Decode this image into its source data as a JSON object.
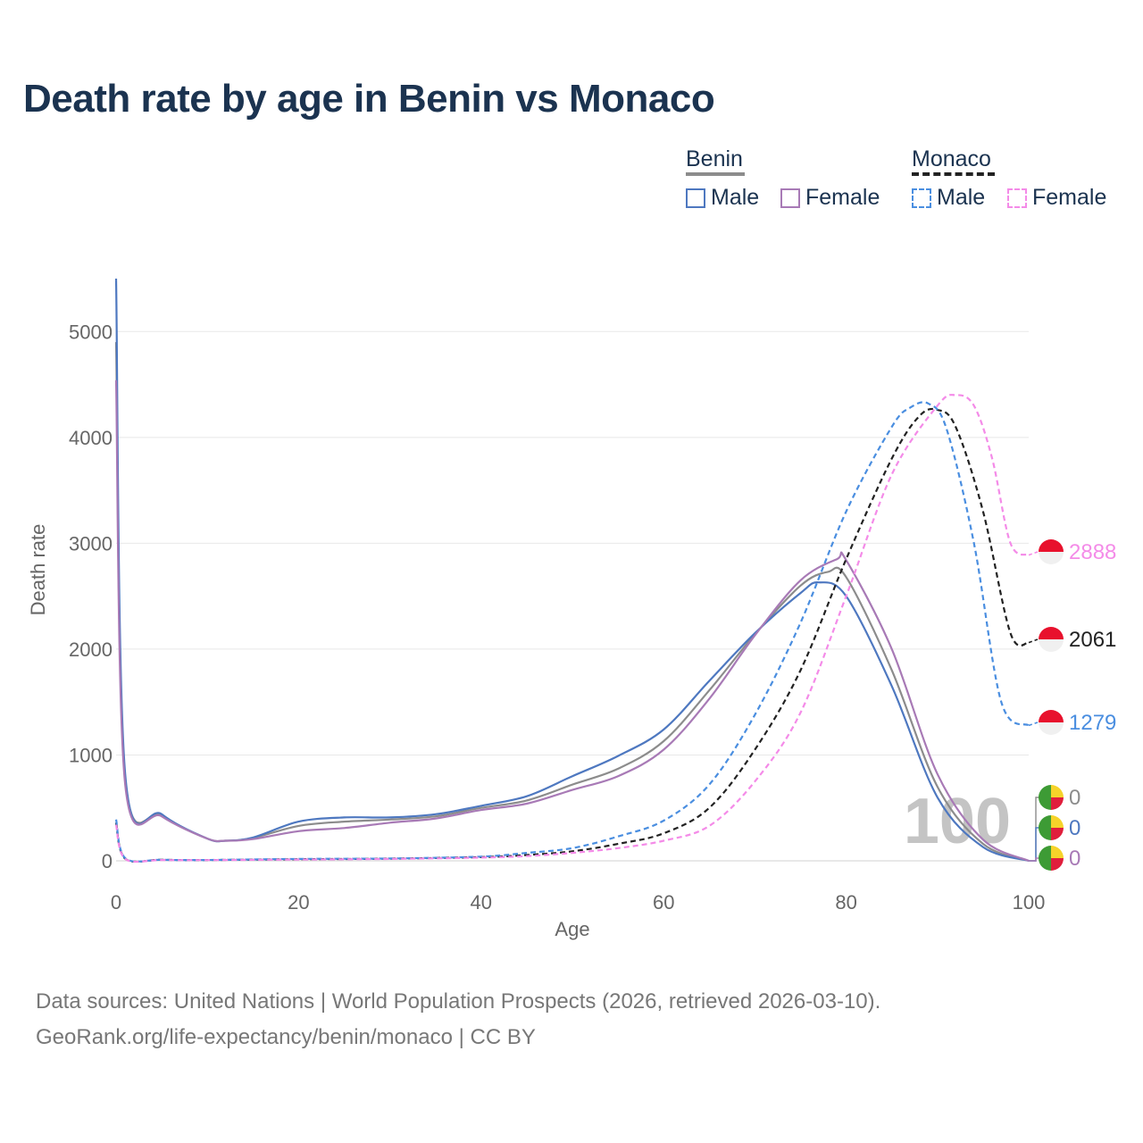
{
  "chart_data": {
    "type": "line",
    "title": "Death rate by age in Benin vs Monaco",
    "xlabel": "Age",
    "ylabel": "Death rate",
    "xlim": [
      0,
      100
    ],
    "ylim": [
      0,
      5500
    ],
    "x_ticks": [
      0,
      20,
      40,
      60,
      80,
      100
    ],
    "y_ticks": [
      0,
      1000,
      2000,
      3000,
      4000,
      5000
    ],
    "x_tick_labels": [
      "0",
      "20",
      "40",
      "60",
      "80",
      "100"
    ],
    "y_tick_labels": [
      "0",
      "1000",
      "2000",
      "3000",
      "4000",
      "5000"
    ],
    "grid": true,
    "legend_position": "top-right",
    "age_marker": "100",
    "series": [
      {
        "name": "Benin Total",
        "country": "Benin",
        "sex": "Total",
        "color": "#8c8c8c",
        "dashed": false,
        "x": [
          0,
          1,
          5,
          10,
          12,
          15,
          20,
          25,
          30,
          35,
          40,
          45,
          50,
          55,
          60,
          65,
          70,
          75,
          78,
          80,
          85,
          90,
          95,
          100
        ],
        "y": [
          4900,
          780,
          430,
          210,
          190,
          215,
          330,
          370,
          390,
          420,
          500,
          570,
          720,
          870,
          1130,
          1610,
          2140,
          2600,
          2730,
          2680,
          1800,
          700,
          160,
          0
        ]
      },
      {
        "name": "Benin Male",
        "country": "Benin",
        "sex": "Male",
        "color": "#4e78c0",
        "dashed": false,
        "x": [
          0,
          1,
          5,
          10,
          12,
          15,
          20,
          25,
          30,
          35,
          40,
          45,
          50,
          55,
          60,
          65,
          70,
          75,
          77,
          80,
          85,
          90,
          95,
          100
        ],
        "y": [
          5500,
          820,
          440,
          210,
          190,
          220,
          370,
          410,
          410,
          440,
          520,
          610,
          800,
          990,
          1240,
          1700,
          2150,
          2530,
          2630,
          2500,
          1650,
          600,
          130,
          0
        ]
      },
      {
        "name": "Benin Female",
        "country": "Benin",
        "sex": "Female",
        "color": "#a87ab6",
        "dashed": false,
        "x": [
          0,
          1,
          5,
          10,
          12,
          15,
          20,
          25,
          30,
          35,
          40,
          45,
          50,
          55,
          60,
          65,
          70,
          75,
          79,
          80,
          85,
          90,
          95,
          100
        ],
        "y": [
          4540,
          720,
          420,
          210,
          190,
          205,
          280,
          310,
          360,
          400,
          480,
          540,
          670,
          800,
          1050,
          1530,
          2130,
          2650,
          2850,
          2840,
          2000,
          820,
          200,
          0
        ]
      },
      {
        "name": "Monaco Total",
        "country": "Monaco",
        "sex": "Total",
        "color": "#222222",
        "dashed": true,
        "x": [
          0,
          1,
          5,
          10,
          20,
          30,
          40,
          45,
          50,
          55,
          60,
          65,
          70,
          75,
          80,
          85,
          88,
          90,
          92,
          95,
          98,
          100
        ],
        "y": [
          360,
          20,
          10,
          8,
          15,
          20,
          35,
          55,
          90,
          160,
          260,
          500,
          1050,
          1800,
          2850,
          3800,
          4200,
          4260,
          4100,
          3300,
          2150,
          2061
        ]
      },
      {
        "name": "Monaco Male",
        "country": "Monaco",
        "sex": "Male",
        "color": "#4a8ee0",
        "dashed": true,
        "x": [
          0,
          1,
          5,
          10,
          20,
          30,
          40,
          45,
          50,
          55,
          60,
          65,
          70,
          75,
          80,
          85,
          87,
          89,
          91,
          94,
          97,
          100
        ],
        "y": [
          390,
          25,
          10,
          8,
          18,
          22,
          40,
          75,
          120,
          230,
          380,
          720,
          1380,
          2250,
          3300,
          4100,
          4280,
          4320,
          4080,
          3000,
          1500,
          1279
        ]
      },
      {
        "name": "Monaco Female",
        "country": "Monaco",
        "sex": "Female",
        "color": "#f48be8",
        "dashed": true,
        "x": [
          0,
          1,
          5,
          10,
          20,
          30,
          40,
          45,
          50,
          55,
          60,
          65,
          70,
          75,
          80,
          85,
          90,
          92,
          94,
          96,
          98,
          100
        ],
        "y": [
          340,
          18,
          8,
          7,
          12,
          18,
          30,
          45,
          75,
          120,
          190,
          330,
          750,
          1400,
          2500,
          3650,
          4300,
          4400,
          4300,
          3800,
          3000,
          2888
        ]
      }
    ],
    "end_labels": [
      {
        "label": "2888",
        "value": 2888,
        "color": "#f48be8",
        "flag": "monaco"
      },
      {
        "label": "2061",
        "value": 2061,
        "color": "#222222",
        "flag": "monaco"
      },
      {
        "label": "1279",
        "value": 1279,
        "color": "#4a8ee0",
        "flag": "monaco"
      },
      {
        "label": "0",
        "value": 0,
        "color": "#8c8c8c",
        "flag": "benin"
      },
      {
        "label": "0",
        "value": 0,
        "color": "#4e78c0",
        "flag": "benin"
      },
      {
        "label": "0",
        "value": 0,
        "color": "#a87ab6",
        "flag": "benin"
      }
    ]
  },
  "legend": {
    "groups": [
      {
        "title": "Benin",
        "underline_color": "#8c8c8c",
        "underline_dashed": false,
        "items": [
          {
            "label": "Male",
            "color": "#4e78c0",
            "dashed": false
          },
          {
            "label": "Female",
            "color": "#a87ab6",
            "dashed": false
          }
        ]
      },
      {
        "title": "Monaco",
        "underline_color": "#222222",
        "underline_dashed": true,
        "items": [
          {
            "label": "Male",
            "color": "#4a8ee0",
            "dashed": true
          },
          {
            "label": "Female",
            "color": "#f48be8",
            "dashed": true
          }
        ]
      }
    ]
  },
  "footer": {
    "source": "Data sources: United Nations | World Population Prospects (2026, retrieved 2026-03-10).",
    "link": "GeoRank.org/life-expectancy/benin/monaco | CC BY"
  }
}
